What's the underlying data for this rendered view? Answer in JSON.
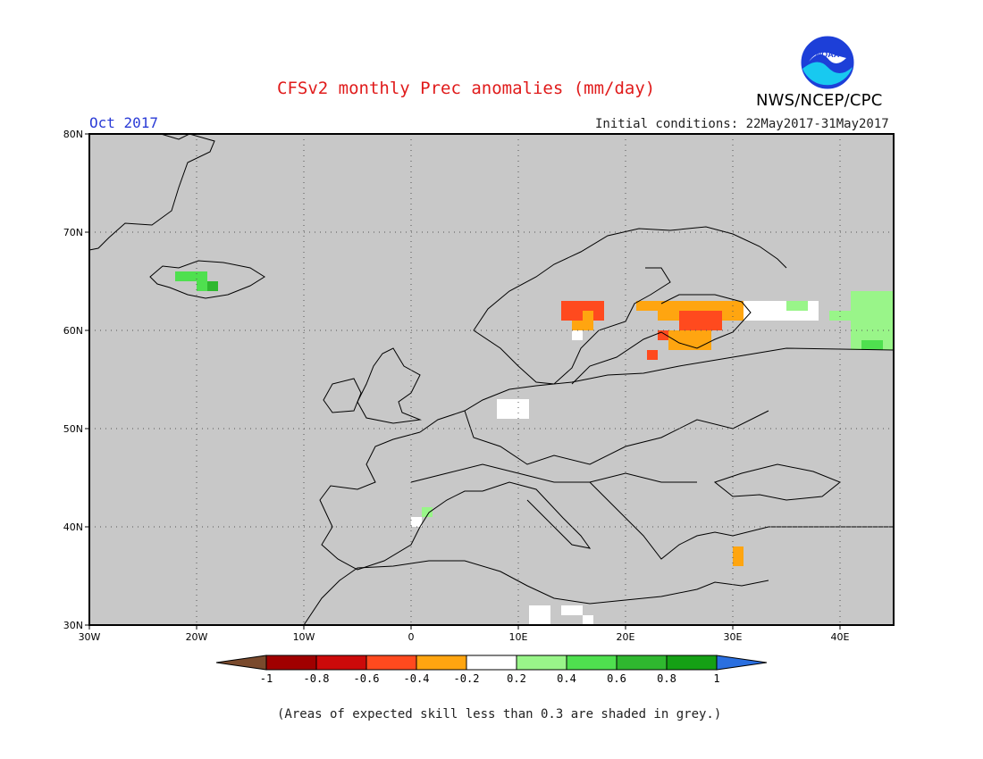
{
  "header": {
    "title": "CFSv2 monthly Prec anomalies (mm/day)",
    "month": "Oct 2017",
    "initial_conditions": "Initial conditions: 22May2017-31May2017",
    "agency": "NWS/NCEP/CPC",
    "logo_text": "NOAA"
  },
  "map": {
    "region": "Europe",
    "lon_range": [
      -30,
      45
    ],
    "lat_range": [
      30,
      80
    ],
    "lat_ticks": [
      {
        "value": 80,
        "label": "80N"
      },
      {
        "value": 70,
        "label": "70N"
      },
      {
        "value": 60,
        "label": "60N"
      },
      {
        "value": 50,
        "label": "50N"
      },
      {
        "value": 40,
        "label": "40N"
      },
      {
        "value": 30,
        "label": "30N"
      }
    ],
    "lon_ticks": [
      {
        "value": -30,
        "label": "30W"
      },
      {
        "value": -20,
        "label": "20W"
      },
      {
        "value": -10,
        "label": "10W"
      },
      {
        "value": 0,
        "label": "0"
      },
      {
        "value": 10,
        "label": "10E"
      },
      {
        "value": 20,
        "label": "20E"
      },
      {
        "value": 30,
        "label": "30E"
      },
      {
        "value": 40,
        "label": "40E"
      }
    ],
    "background_color": "#c8c8c8",
    "grid": "dotted",
    "anomaly_cells": [
      {
        "lon": [
          -20,
          -19
        ],
        "lat": [
          64,
          66
        ],
        "color": "#4fe04f"
      },
      {
        "lon": [
          -22,
          -20
        ],
        "lat": [
          65,
          66
        ],
        "color": "#4fe04f"
      },
      {
        "lon": [
          -19,
          -18
        ],
        "lat": [
          64,
          65
        ],
        "color": "#2fb82f"
      },
      {
        "lon": [
          14,
          18
        ],
        "lat": [
          61,
          63
        ],
        "color": "#ff4a1e"
      },
      {
        "lon": [
          16,
          17
        ],
        "lat": [
          60,
          62
        ],
        "color": "#ffa510"
      },
      {
        "lon": [
          15,
          16
        ],
        "lat": [
          60,
          61
        ],
        "color": "#ffa510"
      },
      {
        "lon": [
          15,
          16
        ],
        "lat": [
          59,
          60
        ],
        "color": "#ffffff"
      },
      {
        "lon": [
          21,
          31
        ],
        "lat": [
          62,
          63
        ],
        "color": "#ffa510"
      },
      {
        "lon": [
          23,
          31
        ],
        "lat": [
          61,
          62
        ],
        "color": "#ffa510"
      },
      {
        "lon": [
          25,
          29
        ],
        "lat": [
          60,
          62
        ],
        "color": "#ff4a1e"
      },
      {
        "lon": [
          23,
          26
        ],
        "lat": [
          59,
          60
        ],
        "color": "#ff4a1e"
      },
      {
        "lon": [
          24,
          28
        ],
        "lat": [
          58,
          60
        ],
        "color": "#ffa510"
      },
      {
        "lon": [
          22,
          23
        ],
        "lat": [
          57,
          58
        ],
        "color": "#ff4a1e"
      },
      {
        "lon": [
          31,
          38
        ],
        "lat": [
          61,
          63
        ],
        "color": "#ffffff"
      },
      {
        "lon": [
          35,
          37
        ],
        "lat": [
          62,
          63
        ],
        "color": "#99f589"
      },
      {
        "lon": [
          39,
          41
        ],
        "lat": [
          61,
          62
        ],
        "color": "#99f589"
      },
      {
        "lon": [
          41,
          45
        ],
        "lat": [
          58,
          64
        ],
        "color": "#99f589"
      },
      {
        "lon": [
          42,
          44
        ],
        "lat": [
          58,
          59
        ],
        "color": "#4fe04f"
      },
      {
        "lon": [
          8,
          11
        ],
        "lat": [
          51,
          53
        ],
        "color": "#ffffff"
      },
      {
        "lon": [
          1,
          2
        ],
        "lat": [
          41,
          42
        ],
        "color": "#99f589"
      },
      {
        "lon": [
          0,
          1
        ],
        "lat": [
          40,
          41
        ],
        "color": "#ffffff"
      },
      {
        "lon": [
          30,
          31
        ],
        "lat": [
          36,
          38
        ],
        "color": "#ffa510"
      },
      {
        "lon": [
          11,
          13
        ],
        "lat": [
          30,
          32
        ],
        "color": "#ffffff"
      },
      {
        "lon": [
          14,
          16
        ],
        "lat": [
          31,
          32
        ],
        "color": "#ffffff"
      },
      {
        "lon": [
          16,
          17
        ],
        "lat": [
          30,
          31
        ],
        "color": "#ffffff"
      }
    ]
  },
  "colorbar": {
    "bins": [
      {
        "color": "#7a4a2d"
      },
      {
        "color": "#a00000"
      },
      {
        "color": "#cc0a0a"
      },
      {
        "color": "#ff4a1e"
      },
      {
        "color": "#ffa510"
      },
      {
        "color": "#ffffff"
      },
      {
        "color": "#99f589"
      },
      {
        "color": "#4fe04f"
      },
      {
        "color": "#2fb82f"
      },
      {
        "color": "#15a015"
      },
      {
        "color": "#2a6fe0"
      }
    ],
    "labels": [
      "-1",
      "-0.8",
      "-0.6",
      "-0.4",
      "-0.2",
      "0.2",
      "0.4",
      "0.6",
      "0.8",
      "1"
    ]
  },
  "footnote": "(Areas of expected skill less than 0.3 are shaded in grey.)"
}
